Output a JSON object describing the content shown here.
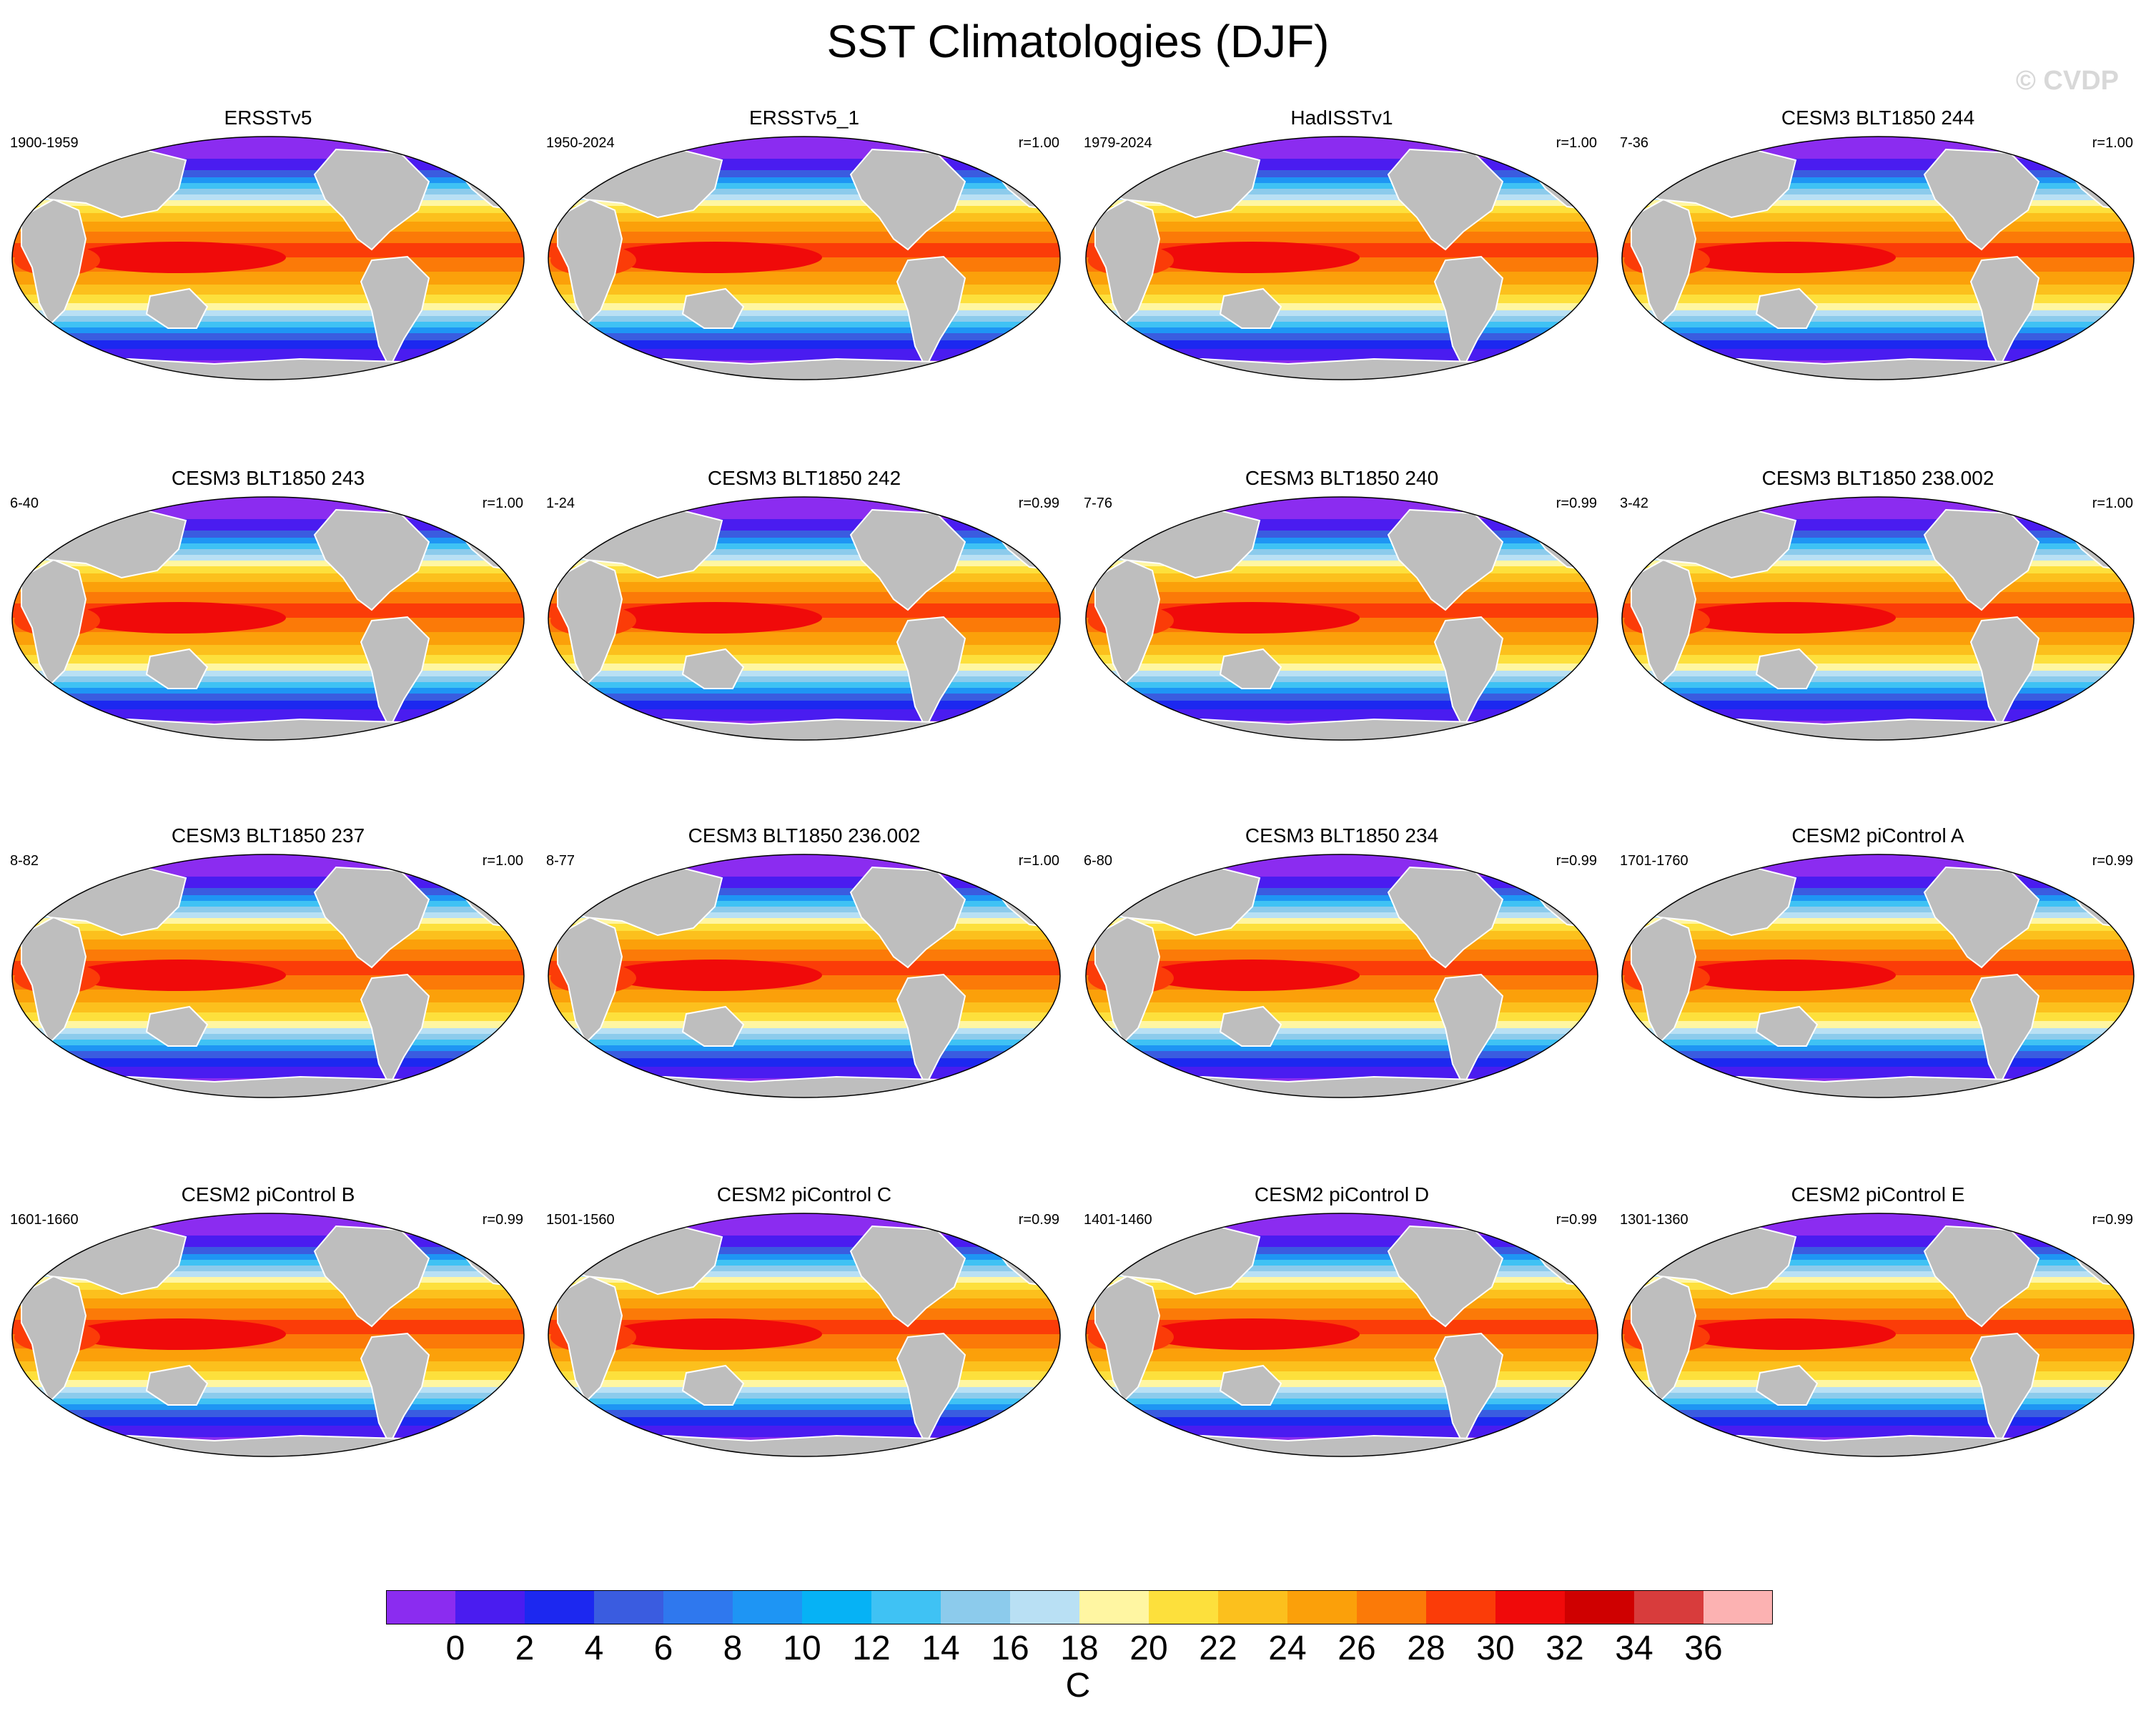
{
  "title": "SST Climatologies (DJF)",
  "watermark": "© CVDP",
  "chart_data": {
    "type": "heatmap",
    "description": "",
    "panels": [
      {
        "name": "ERSSTv5",
        "period": "1900-1959",
        "corr": ""
      },
      {
        "name": "ERSSTv5_1",
        "period": "1950-2024",
        "corr": "r=1.00"
      },
      {
        "name": "HadISSTv1",
        "period": "1979-2024",
        "corr": "r=1.00"
      },
      {
        "name": "CESM3 BLT1850 244",
        "period": "7-36",
        "corr": "r=1.00"
      },
      {
        "name": "CESM3 BLT1850 243",
        "period": "6-40",
        "corr": "r=1.00"
      },
      {
        "name": "CESM3 BLT1850 242",
        "period": "1-24",
        "corr": "r=0.99"
      },
      {
        "name": "CESM3 BLT1850 240",
        "period": "7-76",
        "corr": "r=0.99"
      },
      {
        "name": "CESM3 BLT1850 238.002",
        "period": "3-42",
        "corr": "r=1.00"
      },
      {
        "name": "CESM3 BLT1850 237",
        "period": "8-82",
        "corr": "r=1.00"
      },
      {
        "name": "CESM3 BLT1850 236.002",
        "period": "8-77",
        "corr": "r=1.00"
      },
      {
        "name": "CESM3 BLT1850 234",
        "period": "6-80",
        "corr": "r=0.99"
      },
      {
        "name": "CESM2 piControl A",
        "period": "1701-1760",
        "corr": "r=0.99"
      },
      {
        "name": "CESM2 piControl B",
        "period": "1601-1660",
        "corr": "r=0.99"
      },
      {
        "name": "CESM2 piControl C",
        "period": "1501-1560",
        "corr": "r=0.99"
      },
      {
        "name": "CESM2 piControl D",
        "period": "1401-1460",
        "corr": "r=0.99"
      },
      {
        "name": "CESM2 piControl E",
        "period": "1301-1360",
        "corr": "r=0.99"
      }
    ],
    "colorbar": {
      "unit": "C",
      "levels": [
        0,
        2,
        4,
        6,
        8,
        10,
        12,
        14,
        16,
        18,
        20,
        22,
        24,
        26,
        28,
        30,
        32,
        34,
        36
      ],
      "tick_labels": [
        "0",
        "2",
        "4",
        "6",
        "8",
        "10",
        "12",
        "14",
        "16",
        "18",
        "20",
        "22",
        "24",
        "26",
        "28",
        "30",
        "32",
        "34",
        "36"
      ],
      "colors": [
        "#8b2cf0",
        "#4a1cf0",
        "#1c28f0",
        "#3a5ce0",
        "#2f78ee",
        "#1e95f4",
        "#06b2f5",
        "#3fc2f4",
        "#8ccbec",
        "#b9e0f4",
        "#fff6a2",
        "#fde03c",
        "#fcc01d",
        "#fba00a",
        "#fb7a08",
        "#fb3c08",
        "#f00a0a",
        "#cf0000",
        "#d83c3c",
        "#fcb2b2"
      ]
    },
    "land_color": "#bebebe"
  }
}
